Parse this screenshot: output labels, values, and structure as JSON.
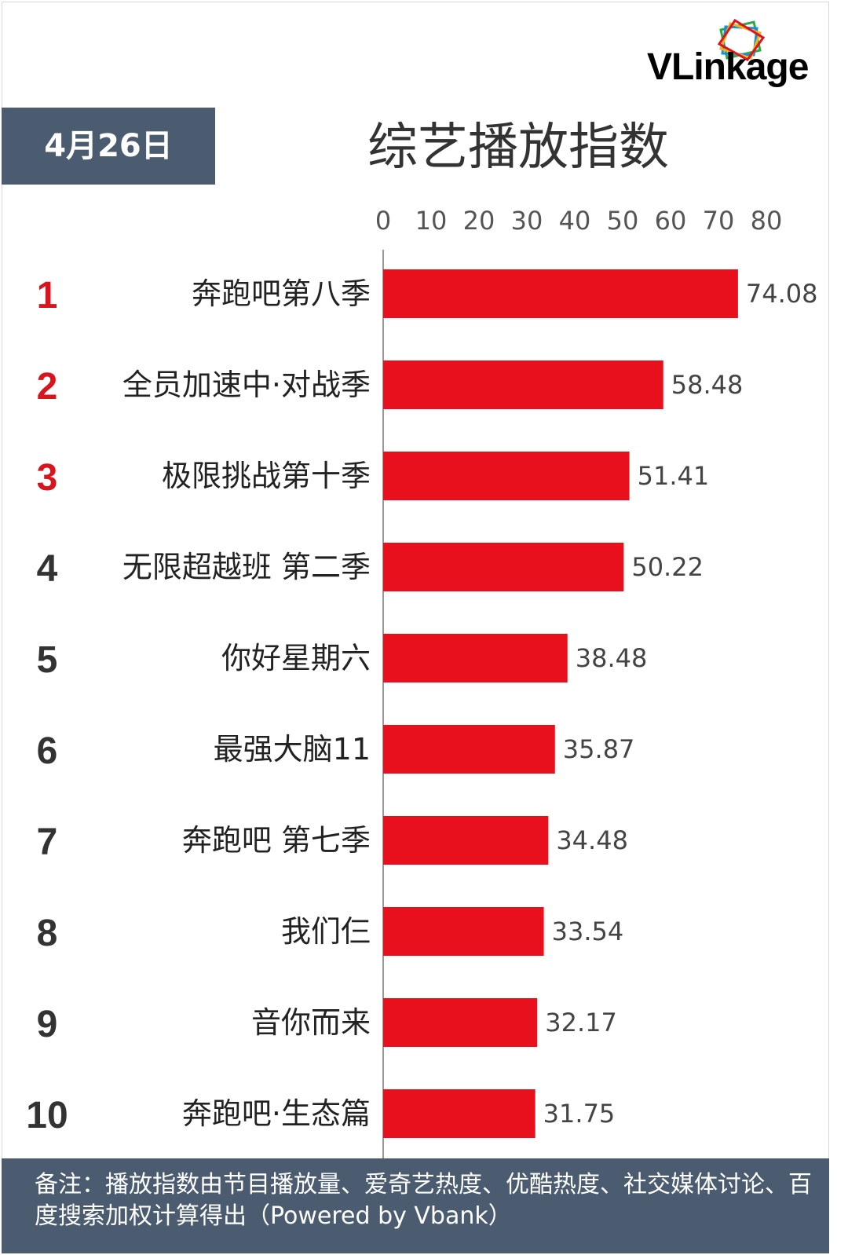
{
  "header": {
    "date": "4月26日",
    "title": "综艺播放指数",
    "logo": "VLinkage"
  },
  "colors": {
    "bar": "#e8101c",
    "rank_top": "#d8141e",
    "rank_other": "#333333",
    "badge": "#4b5c70"
  },
  "chart_data": {
    "type": "bar",
    "orientation": "horizontal",
    "title": "综艺播放指数",
    "xlim": [
      0,
      80
    ],
    "x_ticks": [
      "0",
      "10",
      "20",
      "30",
      "40",
      "50",
      "60",
      "70",
      "80"
    ],
    "ranks": [
      "1",
      "2",
      "3",
      "4",
      "5",
      "6",
      "7",
      "8",
      "9",
      "10"
    ],
    "categories": [
      "奔跑吧第八季",
      "全员加速中·对战季",
      "极限挑战第十季",
      "无限超越班 第二季",
      "你好星期六",
      "最强大脑11",
      "奔跑吧 第七季",
      "我们仨",
      "音你而来",
      "奔跑吧·生态篇"
    ],
    "values": [
      74.08,
      58.48,
      51.41,
      50.22,
      38.48,
      35.87,
      34.48,
      33.54,
      32.17,
      31.75
    ],
    "value_labels": [
      "74.08",
      "58.48",
      "51.41",
      "50.22",
      "38.48",
      "35.87",
      "34.48",
      "33.54",
      "32.17",
      "31.75"
    ],
    "grid": false,
    "legend": "none"
  },
  "footer": {
    "note": "备注：播放指数由节目播放量、爱奇艺热度、优酷热度、社交媒体讨论、百度搜索加权计算得出（Powered by Vbank）"
  }
}
